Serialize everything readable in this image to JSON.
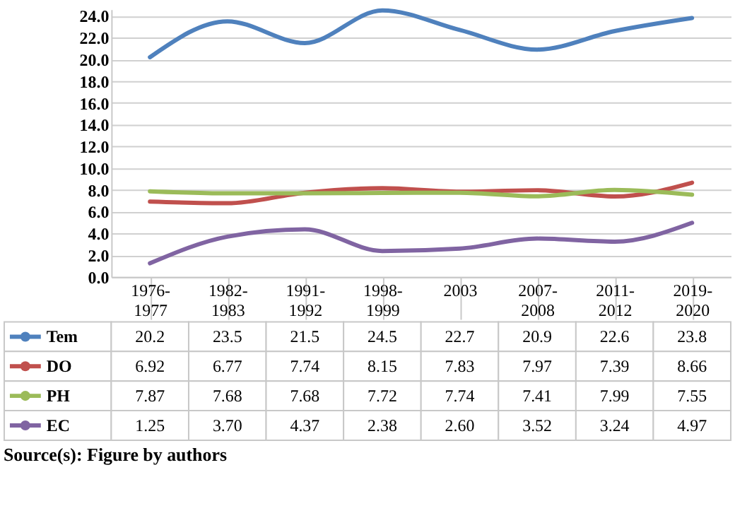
{
  "chart_data": {
    "type": "line",
    "categories": [
      "1976-1977",
      "1982-1983",
      "1991-1992",
      "1998-1999",
      "2003",
      "2007-2008",
      "2011-2012",
      "2019-2020"
    ],
    "series": [
      {
        "name": "Tem",
        "color": "#4f81bd",
        "values": [
          20.2,
          23.5,
          21.5,
          24.5,
          22.7,
          20.9,
          22.6,
          23.8
        ],
        "value_labels": [
          "20.2",
          "23.5",
          "21.5",
          "24.5",
          "22.7",
          "20.9",
          "22.6",
          "23.8"
        ]
      },
      {
        "name": "DO",
        "color": "#c0504d",
        "values": [
          6.92,
          6.77,
          7.74,
          8.15,
          7.83,
          7.97,
          7.39,
          8.66
        ],
        "value_labels": [
          "6.92",
          "6.77",
          "7.74",
          "8.15",
          "7.83",
          "7.97",
          "7.39",
          "8.66"
        ]
      },
      {
        "name": "PH",
        "color": "#9bbb59",
        "values": [
          7.87,
          7.68,
          7.68,
          7.72,
          7.74,
          7.41,
          7.99,
          7.55
        ],
        "value_labels": [
          "7.87",
          "7.68",
          "7.68",
          "7.72",
          "7.74",
          "7.41",
          "7.99",
          "7.55"
        ]
      },
      {
        "name": "EC",
        "color": "#8064a2",
        "values": [
          1.25,
          3.7,
          4.37,
          2.38,
          2.6,
          3.52,
          3.24,
          4.97
        ],
        "value_labels": [
          "1.25",
          "3.70",
          "4.37",
          "2.38",
          "2.60",
          "3.52",
          "3.24",
          "4.97"
        ]
      }
    ],
    "ylim": [
      0,
      24.6
    ],
    "yticks": [
      {
        "value": 0,
        "label": "0.0"
      },
      {
        "value": 2,
        "label": "2.0"
      },
      {
        "value": 4,
        "label": "4.0"
      },
      {
        "value": 6,
        "label": "6.0"
      },
      {
        "value": 8,
        "label": "8.0"
      },
      {
        "value": 10,
        "label": "10.0"
      },
      {
        "value": 12,
        "label": "12.0"
      },
      {
        "value": 14,
        "label": "14.0"
      },
      {
        "value": 16,
        "label": "16.0"
      },
      {
        "value": 18,
        "label": "18.0"
      },
      {
        "value": 20,
        "label": "20.0"
      },
      {
        "value": 22,
        "label": "22.0"
      },
      {
        "value": 24,
        "label": "24.0"
      }
    ],
    "grid": "y",
    "legend": "bottom",
    "line_style": "solid",
    "annotations": [
      "Source(s): Figure by authors"
    ]
  }
}
